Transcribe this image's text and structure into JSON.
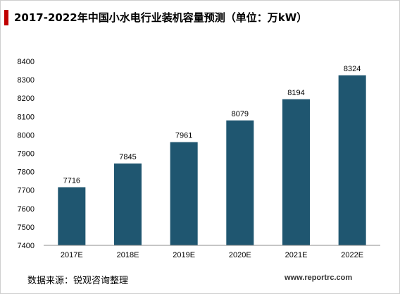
{
  "header": {
    "title": "2017-2022年中国小水电行业装机容量预测（单位：万kW）"
  },
  "footer": {
    "source": "数据来源：锐观咨询整理",
    "watermark": "www.reportrc.com"
  },
  "colors": {
    "bar": "#1f5670",
    "accent": "#c00000",
    "axis": "#8c8c8c",
    "grid": "#d9d9d9"
  },
  "chart_data": {
    "type": "bar",
    "title": "2017-2022年中国小水电行业装机容量预测（单位：万kW）",
    "categories": [
      "2017E",
      "2018E",
      "2019E",
      "2020E",
      "2021E",
      "2022E"
    ],
    "values": [
      7716,
      7845,
      7961,
      8079,
      8194,
      8324
    ],
    "ylim": [
      7400,
      8400
    ],
    "yticks": [
      7400,
      7500,
      7600,
      7700,
      7800,
      7900,
      8000,
      8100,
      8200,
      8300,
      8400
    ],
    "xlabel": "",
    "ylabel": "",
    "data_labels": true,
    "grid": false,
    "legend": "none"
  }
}
